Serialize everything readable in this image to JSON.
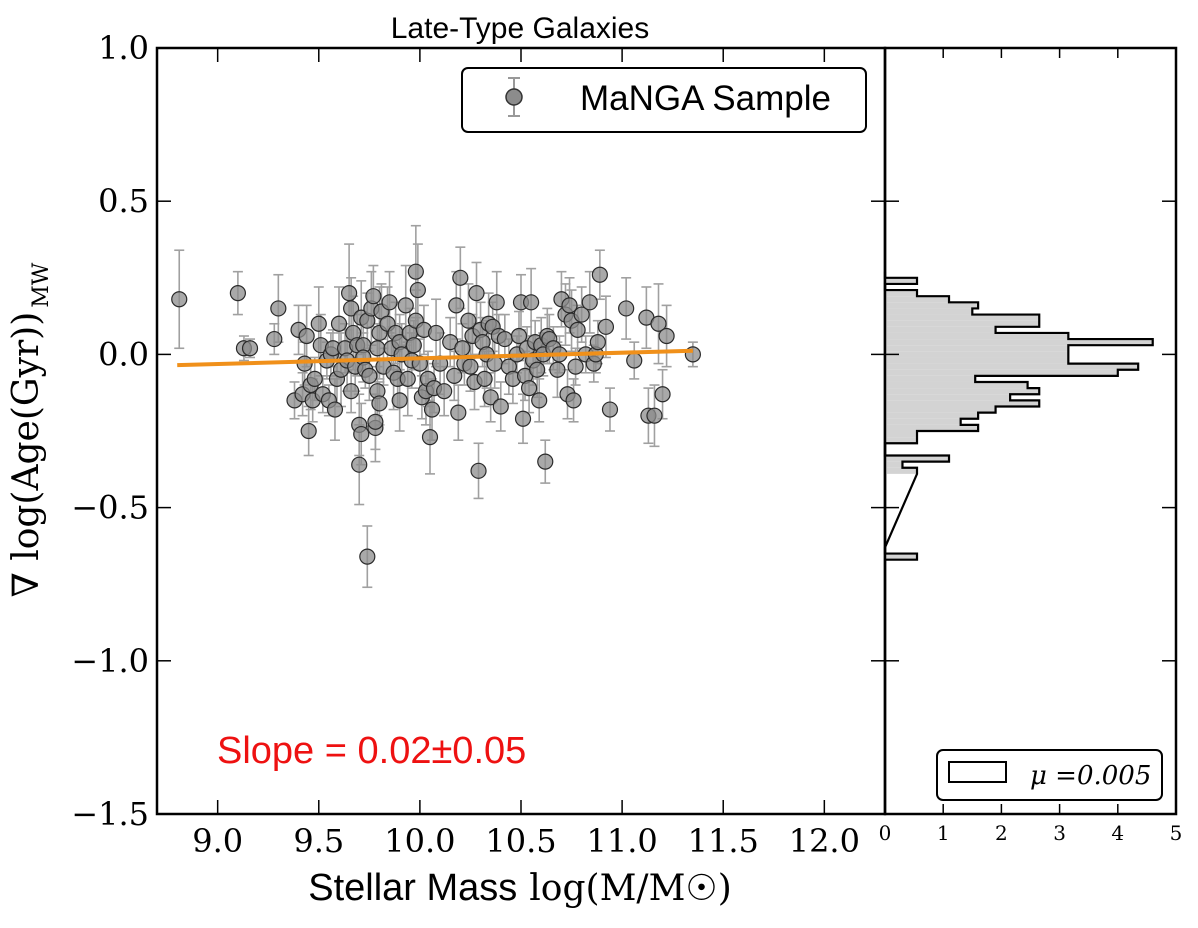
{
  "chart_data": [
    {
      "id": "scatter",
      "type": "scatter",
      "title": "Late-Type Galaxies",
      "xlabel_text": "Stellar Mass",
      "xlabel_math": "log(M/M☉)",
      "ylabel_math": "∇ log(Age(Gyr))",
      "ylabel_subscript": "MW",
      "xlim": [
        8.7,
        12.3
      ],
      "ylim": [
        -1.5,
        1.0
      ],
      "xticks": [
        9.0,
        9.5,
        10.0,
        10.5,
        11.0,
        11.5,
        12.0
      ],
      "xtick_labels": [
        "9.0",
        "9.5",
        "10.0",
        "10.5",
        "11.0",
        "11.5",
        "12.0"
      ],
      "yticks": [
        1.0,
        0.5,
        0.0,
        -0.5,
        -1.0,
        -1.5
      ],
      "ytick_labels": [
        "1.0",
        "0.5",
        "0.0",
        "−0.5",
        "−1.0",
        "−1.5"
      ],
      "legend": {
        "label": "MaNGA Sample",
        "position": "top-right"
      },
      "annotation": {
        "text": "Slope = 0.02±0.05",
        "color": "#ee1111"
      },
      "fit_line": {
        "x": [
          8.8,
          11.35
        ],
        "y": [
          -0.035,
          0.012
        ],
        "color": "#f0901a"
      },
      "points": [
        [
          8.81,
          0.18,
          0.16
        ],
        [
          9.1,
          0.2,
          0.07
        ],
        [
          9.13,
          0.02,
          0.04
        ],
        [
          9.16,
          0.02,
          0.03
        ],
        [
          9.28,
          0.05,
          0.05
        ],
        [
          9.3,
          0.15,
          0.11
        ],
        [
          9.38,
          -0.15,
          0.06
        ],
        [
          9.4,
          0.08,
          0.08
        ],
        [
          9.42,
          -0.13,
          0.07
        ],
        [
          9.43,
          -0.03,
          0.07
        ],
        [
          9.44,
          0.06,
          0.1
        ],
        [
          9.45,
          -0.25,
          0.08
        ],
        [
          9.46,
          -0.1,
          0.08
        ],
        [
          9.47,
          -0.15,
          0.07
        ],
        [
          9.48,
          -0.08,
          0.07
        ],
        [
          9.5,
          0.1,
          0.12
        ],
        [
          9.51,
          0.03,
          0.1
        ],
        [
          9.52,
          -0.13,
          0.06
        ],
        [
          9.54,
          -0.02,
          0.06
        ],
        [
          9.55,
          -0.15,
          0.05
        ],
        [
          9.56,
          0.0,
          0.07
        ],
        [
          9.57,
          0.02,
          0.06
        ],
        [
          9.58,
          -0.18,
          0.1
        ],
        [
          9.59,
          -0.08,
          0.08
        ],
        [
          9.6,
          0.1,
          0.12
        ],
        [
          9.61,
          -0.05,
          0.12
        ],
        [
          9.63,
          0.02,
          0.08
        ],
        [
          9.64,
          -0.02,
          0.1
        ],
        [
          9.65,
          0.2,
          0.16
        ],
        [
          9.66,
          0.15,
          0.1
        ],
        [
          9.66,
          -0.12,
          0.07
        ],
        [
          9.67,
          0.07,
          0.12
        ],
        [
          9.68,
          -0.04,
          0.08
        ],
        [
          9.69,
          0.03,
          0.1
        ],
        [
          9.7,
          -0.36,
          0.13
        ],
        [
          9.7,
          -0.23,
          0.1
        ],
        [
          9.71,
          -0.26,
          0.1
        ],
        [
          9.71,
          0.12,
          0.12
        ],
        [
          9.72,
          0.03,
          0.1
        ],
        [
          9.72,
          -0.01,
          0.08
        ],
        [
          9.73,
          -0.05,
          0.06
        ],
        [
          9.74,
          -0.66,
          0.1
        ],
        [
          9.74,
          0.11,
          0.09
        ],
        [
          9.75,
          -0.07,
          0.08
        ],
        [
          9.76,
          0.15,
          0.12
        ],
        [
          9.77,
          0.19,
          0.1
        ],
        [
          9.78,
          -0.24,
          0.11
        ],
        [
          9.78,
          -0.22,
          0.09
        ],
        [
          9.79,
          0.02,
          0.08
        ],
        [
          9.79,
          -0.12,
          0.08
        ],
        [
          9.8,
          0.07,
          0.15
        ],
        [
          9.8,
          -0.16,
          0.07
        ],
        [
          9.81,
          0.14,
          0.09
        ],
        [
          9.82,
          -0.04,
          0.06
        ],
        [
          9.84,
          0.1,
          0.12
        ],
        [
          9.85,
          0.17,
          0.1
        ],
        [
          9.86,
          0.02,
          0.07
        ],
        [
          9.87,
          -0.06,
          0.12
        ],
        [
          9.88,
          0.07,
          0.1
        ],
        [
          9.89,
          -0.08,
          0.09
        ],
        [
          9.9,
          0.04,
          0.09
        ],
        [
          9.9,
          -0.15,
          0.1
        ],
        [
          9.91,
          0.0,
          0.1
        ],
        [
          9.93,
          0.16,
          0.13
        ],
        [
          9.94,
          -0.08,
          0.12
        ],
        [
          9.95,
          0.07,
          0.08
        ],
        [
          9.96,
          -0.02,
          0.09
        ],
        [
          9.97,
          0.03,
          0.08
        ],
        [
          9.98,
          0.11,
          0.1
        ],
        [
          9.98,
          0.27,
          0.15
        ],
        [
          9.99,
          0.21,
          0.15
        ],
        [
          10.0,
          -0.03,
          0.08
        ],
        [
          10.01,
          -0.14,
          0.07
        ],
        [
          10.02,
          0.08,
          0.08
        ],
        [
          10.03,
          -0.12,
          0.11
        ],
        [
          10.04,
          -0.08,
          0.09
        ],
        [
          10.05,
          -0.27,
          0.12
        ],
        [
          10.06,
          -0.18,
          0.1
        ],
        [
          10.07,
          -0.11,
          0.08
        ],
        [
          10.08,
          0.07,
          0.11
        ],
        [
          10.1,
          -0.03,
          0.1
        ],
        [
          10.12,
          -0.12,
          0.08
        ],
        [
          10.15,
          0.04,
          0.08
        ],
        [
          10.17,
          -0.07,
          0.08
        ],
        [
          10.18,
          0.16,
          0.11
        ],
        [
          10.19,
          -0.19,
          0.09
        ],
        [
          10.2,
          0.25,
          0.1
        ],
        [
          10.21,
          0.02,
          0.08
        ],
        [
          10.22,
          -0.03,
          0.07
        ],
        [
          10.24,
          0.11,
          0.12
        ],
        [
          10.25,
          -0.04,
          0.08
        ],
        [
          10.26,
          0.06,
          0.07
        ],
        [
          10.27,
          -0.09,
          0.09
        ],
        [
          10.28,
          0.2,
          0.1
        ],
        [
          10.29,
          -0.38,
          0.09
        ],
        [
          10.3,
          0.08,
          0.09
        ],
        [
          10.31,
          0.04,
          0.08
        ],
        [
          10.32,
          -0.08,
          0.09
        ],
        [
          10.33,
          0.0,
          0.11
        ],
        [
          10.34,
          0.1,
          0.1
        ],
        [
          10.35,
          -0.14,
          0.08
        ],
        [
          10.36,
          0.09,
          0.08
        ],
        [
          10.37,
          -0.03,
          0.08
        ],
        [
          10.38,
          0.17,
          0.1
        ],
        [
          10.39,
          0.06,
          0.07
        ],
        [
          10.4,
          -0.17,
          0.08
        ],
        [
          10.42,
          0.05,
          0.08
        ],
        [
          10.44,
          -0.04,
          0.09
        ],
        [
          10.46,
          -0.08,
          0.08
        ],
        [
          10.48,
          0.0,
          0.06
        ],
        [
          10.49,
          0.06,
          0.08
        ],
        [
          10.5,
          0.17,
          0.09
        ],
        [
          10.51,
          -0.21,
          0.08
        ],
        [
          10.52,
          -0.07,
          0.08
        ],
        [
          10.53,
          0.02,
          0.07
        ],
        [
          10.54,
          -0.11,
          0.08
        ],
        [
          10.55,
          0.17,
          0.11
        ],
        [
          10.56,
          -0.02,
          0.08
        ],
        [
          10.57,
          0.04,
          0.07
        ],
        [
          10.58,
          -0.05,
          0.09
        ],
        [
          10.59,
          -0.15,
          0.07
        ],
        [
          10.6,
          0.03,
          0.09
        ],
        [
          10.61,
          0.0,
          0.07
        ],
        [
          10.62,
          -0.35,
          0.07
        ],
        [
          10.63,
          0.06,
          0.09
        ],
        [
          10.64,
          0.05,
          0.08
        ],
        [
          10.66,
          0.02,
          0.07
        ],
        [
          10.68,
          -0.05,
          0.09
        ],
        [
          10.69,
          0.0,
          0.06
        ],
        [
          10.7,
          0.18,
          0.09
        ],
        [
          10.72,
          0.13,
          0.1
        ],
        [
          10.73,
          -0.13,
          0.08
        ],
        [
          10.74,
          0.16,
          0.09
        ],
        [
          10.75,
          0.11,
          0.1
        ],
        [
          10.76,
          -0.15,
          0.07
        ],
        [
          10.77,
          -0.04,
          0.06
        ],
        [
          10.78,
          0.08,
          0.08
        ],
        [
          10.8,
          0.13,
          0.09
        ],
        [
          10.82,
          0.0,
          0.06
        ],
        [
          10.84,
          0.17,
          0.1
        ],
        [
          10.86,
          -0.03,
          0.06
        ],
        [
          10.87,
          0.0,
          0.06
        ],
        [
          10.88,
          0.04,
          0.07
        ],
        [
          10.89,
          0.26,
          0.08
        ],
        [
          10.92,
          0.09,
          0.1
        ],
        [
          10.94,
          -0.18,
          0.07
        ],
        [
          11.02,
          0.15,
          0.1
        ],
        [
          11.06,
          -0.02,
          0.06
        ],
        [
          11.12,
          0.12,
          0.1
        ],
        [
          11.13,
          -0.2,
          0.09
        ],
        [
          11.16,
          -0.2,
          0.1
        ],
        [
          11.18,
          0.1,
          0.13
        ],
        [
          11.2,
          -0.13,
          0.08
        ],
        [
          11.22,
          0.06,
          0.1
        ],
        [
          11.35,
          0.0,
          0.04
        ]
      ]
    },
    {
      "id": "histogram",
      "type": "histogram",
      "orientation": "horizontal",
      "xlim": [
        0,
        5
      ],
      "xticks": [
        0,
        1,
        2,
        3,
        4,
        5
      ],
      "xtick_labels": [
        "0",
        "1",
        "2",
        "3",
        "4",
        "5"
      ],
      "ylim": [
        -1.5,
        1.0
      ],
      "legend": {
        "label": "μ =0.005",
        "position": "bottom-right"
      },
      "bins": [
        [
          -0.67,
          -0.65,
          0.55
        ],
        [
          -0.65,
          -0.63,
          0.0
        ],
        [
          -0.39,
          -0.37,
          0.55
        ],
        [
          -0.37,
          -0.35,
          0.3
        ],
        [
          -0.35,
          -0.33,
          1.1
        ],
        [
          -0.33,
          -0.29,
          0.0
        ],
        [
          -0.29,
          -0.27,
          0.55
        ],
        [
          -0.27,
          -0.25,
          0.55
        ],
        [
          -0.25,
          -0.23,
          1.6
        ],
        [
          -0.23,
          -0.21,
          1.3
        ],
        [
          -0.21,
          -0.19,
          1.6
        ],
        [
          -0.19,
          -0.17,
          1.9
        ],
        [
          -0.17,
          -0.15,
          2.65
        ],
        [
          -0.15,
          -0.13,
          2.15
        ],
        [
          -0.13,
          -0.11,
          2.65
        ],
        [
          -0.11,
          -0.09,
          2.45
        ],
        [
          -0.09,
          -0.07,
          1.55
        ],
        [
          -0.07,
          -0.05,
          4.0
        ],
        [
          -0.05,
          -0.03,
          4.35
        ],
        [
          -0.03,
          -0.01,
          3.15
        ],
        [
          -0.01,
          0.01,
          3.15
        ],
        [
          0.01,
          0.03,
          3.15
        ],
        [
          0.03,
          0.05,
          4.6
        ],
        [
          0.05,
          0.07,
          3.15
        ],
        [
          0.07,
          0.09,
          1.9
        ],
        [
          0.09,
          0.11,
          2.65
        ],
        [
          0.11,
          0.13,
          2.65
        ],
        [
          0.13,
          0.15,
          1.5
        ],
        [
          0.15,
          0.17,
          1.6
        ],
        [
          0.17,
          0.19,
          1.1
        ],
        [
          0.19,
          0.21,
          0.55
        ],
        [
          0.21,
          0.23,
          0.0
        ],
        [
          0.23,
          0.25,
          0.55
        ],
        [
          0.25,
          0.27,
          0.0
        ]
      ]
    }
  ]
}
